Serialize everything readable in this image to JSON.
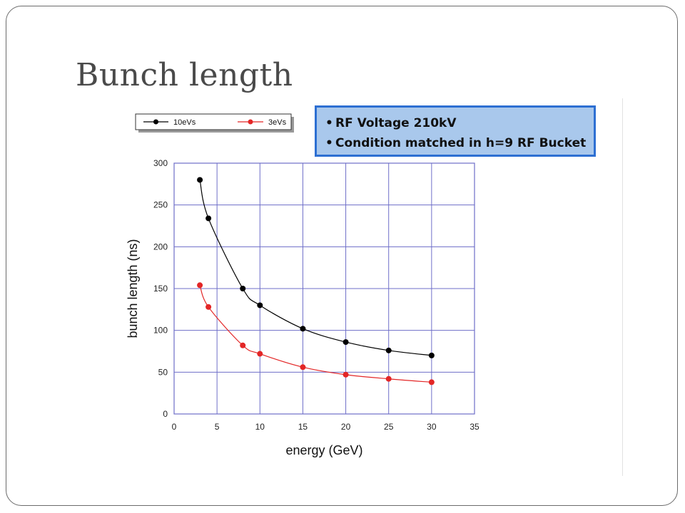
{
  "slide": {
    "title": "Bunch length"
  },
  "info_box": {
    "lines": [
      "RF Voltage 210kV",
      "Condition matched in h=9 RF Bucket"
    ]
  },
  "chart_data": {
    "type": "line",
    "xlabel": "energy (GeV)",
    "ylabel": "bunch length (ns)",
    "xlim": [
      0,
      35
    ],
    "ylim": [
      0,
      300
    ],
    "xticks": [
      0,
      5,
      10,
      15,
      20,
      25,
      30,
      35
    ],
    "yticks": [
      0,
      50,
      100,
      150,
      200,
      250,
      300
    ],
    "grid": true,
    "legend_position": "top",
    "series": [
      {
        "name": "10eVs",
        "color": "#000000",
        "x": [
          3,
          4,
          8,
          10,
          15,
          20,
          25,
          30
        ],
        "y": [
          280,
          234,
          150,
          130,
          102,
          86,
          76,
          70
        ]
      },
      {
        "name": "3eVs",
        "color": "#e32626",
        "x": [
          3,
          4,
          8,
          10,
          15,
          20,
          25,
          30
        ],
        "y": [
          154,
          128,
          82,
          72,
          56,
          47,
          42,
          38
        ]
      }
    ]
  }
}
